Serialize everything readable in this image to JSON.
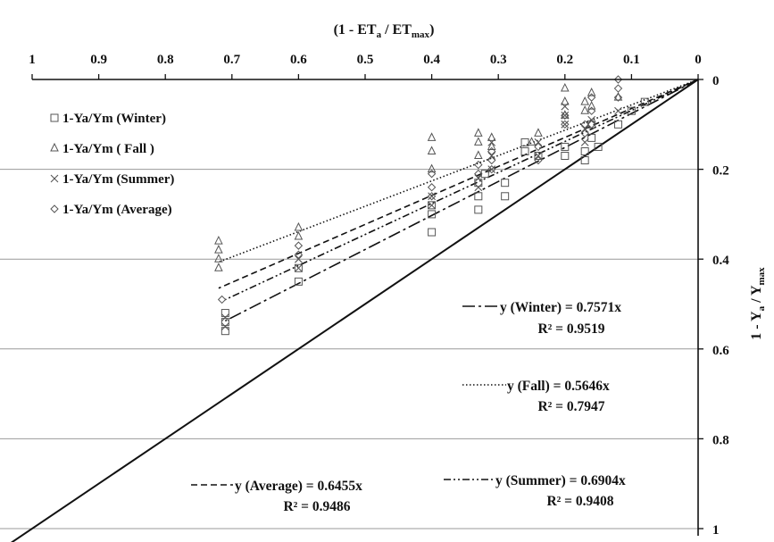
{
  "chart_data": {
    "type": "scatter",
    "x_axis": {
      "title": "(1 - ETa / ETmax)",
      "range": [
        1,
        0
      ],
      "ticks": [
        "1",
        "0.9",
        "0.8",
        "0.7",
        "0.6",
        "0.5",
        "0.4",
        "0.3",
        "0.2",
        "0.1",
        "0"
      ],
      "position": "top",
      "reversed": true
    },
    "y_axis": {
      "title": "1 - Ya / Ymax",
      "range": [
        0,
        1
      ],
      "ticks": [
        "0",
        "0.2",
        "0.4",
        "0.6",
        "0.8",
        "1"
      ],
      "position": "right",
      "reversed": true
    },
    "grid": {
      "horizontal": true,
      "vertical": false
    },
    "legend": {
      "placement": "top-left",
      "entries": [
        {
          "marker": "square",
          "label": "1-Ya/Ym (Winter)"
        },
        {
          "marker": "triangle",
          "label": "1-Ya/Ym  ( Fall )"
        },
        {
          "marker": "x",
          "label": "1-Ya/Ym  (Summer)"
        },
        {
          "marker": "diamond",
          "label": "1-Ya/Ym  (Average)"
        }
      ]
    },
    "series": [
      {
        "name": "1-Ya/Ym (Winter)",
        "marker": "square",
        "slope": 0.7571,
        "line_style": "dash-dot",
        "fit_range": [
          0,
          0.71
        ],
        "points": [
          [
            0.71,
            0.52
          ],
          [
            0.71,
            0.54
          ],
          [
            0.71,
            0.56
          ],
          [
            0.6,
            0.42
          ],
          [
            0.6,
            0.45
          ],
          [
            0.4,
            0.28
          ],
          [
            0.4,
            0.3
          ],
          [
            0.4,
            0.34
          ],
          [
            0.33,
            0.23
          ],
          [
            0.33,
            0.26
          ],
          [
            0.33,
            0.29
          ],
          [
            0.32,
            0.21
          ],
          [
            0.29,
            0.23
          ],
          [
            0.29,
            0.26
          ],
          [
            0.26,
            0.14
          ],
          [
            0.26,
            0.16
          ],
          [
            0.24,
            0.17
          ],
          [
            0.2,
            0.15
          ],
          [
            0.2,
            0.17
          ],
          [
            0.17,
            0.16
          ],
          [
            0.17,
            0.18
          ],
          [
            0.16,
            0.1
          ],
          [
            0.16,
            0.13
          ],
          [
            0.15,
            0.15
          ],
          [
            0.12,
            0.1
          ],
          [
            0.1,
            0.07
          ],
          [
            0.08,
            0.05
          ]
        ]
      },
      {
        "name": "1-Ya/Ym  ( Fall )",
        "marker": "triangle",
        "slope": 0.5646,
        "line_style": "dotted",
        "fit_range": [
          0,
          0.72
        ],
        "points": [
          [
            0.72,
            0.36
          ],
          [
            0.72,
            0.38
          ],
          [
            0.72,
            0.4
          ],
          [
            0.72,
            0.42
          ],
          [
            0.6,
            0.33
          ],
          [
            0.6,
            0.35
          ],
          [
            0.4,
            0.13
          ],
          [
            0.4,
            0.16
          ],
          [
            0.4,
            0.2
          ],
          [
            0.33,
            0.12
          ],
          [
            0.33,
            0.14
          ],
          [
            0.33,
            0.17
          ],
          [
            0.31,
            0.13
          ],
          [
            0.31,
            0.15
          ],
          [
            0.25,
            0.14
          ],
          [
            0.24,
            0.12
          ],
          [
            0.2,
            0.02
          ],
          [
            0.2,
            0.05
          ],
          [
            0.2,
            0.08
          ],
          [
            0.17,
            0.05
          ],
          [
            0.17,
            0.07
          ],
          [
            0.16,
            0.03
          ],
          [
            0.16,
            0.06
          ],
          [
            0.12,
            0.04
          ]
        ]
      },
      {
        "name": "1-Ya/Ym  (Summer)",
        "marker": "x",
        "slope": 0.6904,
        "line_style": "dash-dot-dot",
        "fit_range": [
          0,
          0.71
        ],
        "points": [
          [
            0.71,
            0.53
          ],
          [
            0.71,
            0.55
          ],
          [
            0.6,
            0.4
          ],
          [
            0.6,
            0.42
          ],
          [
            0.4,
            0.26
          ],
          [
            0.4,
            0.28
          ],
          [
            0.33,
            0.22
          ],
          [
            0.33,
            0.24
          ],
          [
            0.31,
            0.14
          ],
          [
            0.31,
            0.17
          ],
          [
            0.31,
            0.2
          ],
          [
            0.24,
            0.14
          ],
          [
            0.24,
            0.17
          ],
          [
            0.2,
            0.06
          ],
          [
            0.2,
            0.08
          ],
          [
            0.2,
            0.1
          ],
          [
            0.17,
            0.11
          ],
          [
            0.17,
            0.14
          ],
          [
            0.16,
            0.09
          ],
          [
            0.12,
            0.07
          ]
        ]
      },
      {
        "name": "1-Ya/Ym  (Average)",
        "marker": "diamond",
        "slope": 0.6455,
        "line_style": "dashed",
        "fit_range": [
          0,
          0.72
        ],
        "points": [
          [
            0.715,
            0.49
          ],
          [
            0.6,
            0.37
          ],
          [
            0.6,
            0.39
          ],
          [
            0.4,
            0.21
          ],
          [
            0.4,
            0.24
          ],
          [
            0.4,
            0.26
          ],
          [
            0.33,
            0.19
          ],
          [
            0.33,
            0.21
          ],
          [
            0.31,
            0.16
          ],
          [
            0.31,
            0.18
          ],
          [
            0.31,
            0.2
          ],
          [
            0.24,
            0.15
          ],
          [
            0.24,
            0.18
          ],
          [
            0.2,
            0.08
          ],
          [
            0.2,
            0.1
          ],
          [
            0.17,
            0.1
          ],
          [
            0.17,
            0.12
          ],
          [
            0.16,
            0.04
          ],
          [
            0.16,
            0.07
          ],
          [
            0.16,
            0.1
          ],
          [
            0.12,
            0.0
          ],
          [
            0.12,
            0.02
          ],
          [
            0.12,
            0.04
          ]
        ]
      }
    ],
    "reference_line": {
      "slope": 1,
      "style": "solid"
    },
    "equations": [
      {
        "series": "1-Ya/Ym (Winter)",
        "line_style": "dash-dot",
        "equation": "y (Winter) = 0.7571x",
        "r2": "R² = 0.9519"
      },
      {
        "series": "1-Ya/Ym  ( Fall )",
        "line_style": "dotted",
        "equation": "y (Fall) = 0.5646x",
        "r2": "R² = 0.7947"
      },
      {
        "series": "1-Ya/Ym  (Average)",
        "line_style": "dashed",
        "equation": "y (Average)  = 0.6455x",
        "r2": "R² = 0.9486"
      },
      {
        "series": "1-Ya/Ym  (Summer)",
        "line_style": "dash-dot-dot",
        "equation": "y (Summer)  = 0.6904x",
        "r2": "R² = 0.9408"
      }
    ],
    "colors": {
      "ink": "#111111",
      "marker": "#555555",
      "grid": "#999999",
      "background": "#ffffff"
    }
  }
}
